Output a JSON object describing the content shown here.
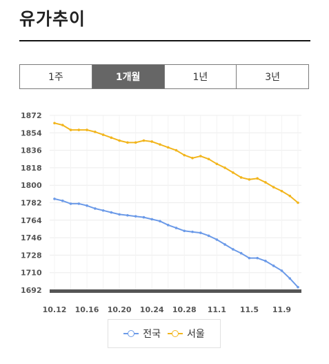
{
  "header": {
    "title": "유가추이"
  },
  "tabs": [
    {
      "label": "1주",
      "active": false
    },
    {
      "label": "1개월",
      "active": true
    },
    {
      "label": "1년",
      "active": false
    },
    {
      "label": "3년",
      "active": false
    }
  ],
  "legend": [
    {
      "label": "전국",
      "color": "#6b9ae8"
    },
    {
      "label": "서울",
      "color": "#f2b51c"
    }
  ],
  "chart_data": {
    "type": "line",
    "ylim": [
      1692,
      1872
    ],
    "yticks": [
      "1872",
      "1854",
      "1836",
      "1818",
      "1800",
      "1782",
      "1764",
      "1746",
      "1728",
      "1710",
      "1692"
    ],
    "xticks": [
      {
        "label": "10.12",
        "index": 0
      },
      {
        "label": "10.16",
        "index": 4
      },
      {
        "label": "10.20",
        "index": 8
      },
      {
        "label": "10.24",
        "index": 12
      },
      {
        "label": "10.28",
        "index": 16
      },
      {
        "label": "11.1",
        "index": 20
      },
      {
        "label": "11.5",
        "index": 24
      },
      {
        "label": "11.9",
        "index": 28
      }
    ],
    "grid": true,
    "series": [
      {
        "name": "전국",
        "color": "#6b9ae8",
        "values": [
          1786,
          1784,
          1781,
          1781,
          1779,
          1776,
          1774,
          1772,
          1770,
          1769,
          1768,
          1767,
          1765,
          1763,
          1759,
          1756,
          1753,
          1752,
          1751,
          1748,
          1744,
          1739,
          1734,
          1730,
          1725,
          1725,
          1722,
          1717,
          1712,
          1704,
          1695
        ]
      },
      {
        "name": "서울",
        "color": "#f2b51c",
        "values": [
          1864,
          1862,
          1857,
          1857,
          1857,
          1855,
          1852,
          1849,
          1846,
          1844,
          1844,
          1846,
          1845,
          1842,
          1839,
          1836,
          1831,
          1828,
          1830,
          1827,
          1822,
          1818,
          1813,
          1808,
          1806,
          1807,
          1803,
          1798,
          1794,
          1789,
          1782
        ]
      }
    ]
  }
}
